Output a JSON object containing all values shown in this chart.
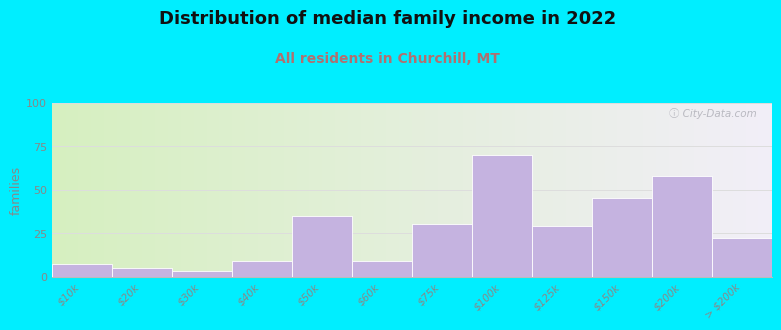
{
  "title": "Distribution of median family income in 2022",
  "subtitle": "All residents in Churchill, MT",
  "ylabel": "families",
  "categories": [
    "$10k",
    "$20k",
    "$30k",
    "$40k",
    "$50k",
    "$60k",
    "$75k",
    "$100k",
    "$125k",
    "$150k",
    "$200k",
    "> $200k"
  ],
  "values": [
    7,
    5,
    3,
    9,
    35,
    9,
    30,
    70,
    29,
    45,
    58,
    22
  ],
  "bar_color": "#c5b3e0",
  "bar_edge_color": "#ffffff",
  "ylim": [
    0,
    100
  ],
  "yticks": [
    0,
    25,
    50,
    75,
    100
  ],
  "background_outer": "#00eeff",
  "background_inner_left": "#d6f0c0",
  "background_inner_right": "#f2eef8",
  "title_fontsize": 13,
  "subtitle_fontsize": 10,
  "subtitle_color": "#b07070",
  "ylabel_fontsize": 9,
  "watermark": "ⓘ City-Data.com",
  "grid_color": "#dddddd",
  "tick_color": "#888888"
}
